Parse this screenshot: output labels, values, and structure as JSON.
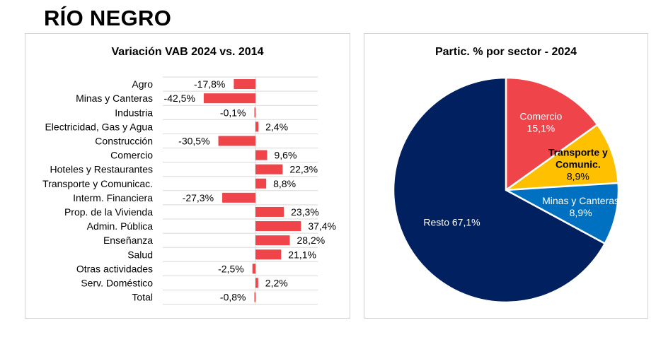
{
  "page": {
    "title": "RÍO NEGRO"
  },
  "chart_data": [
    {
      "type": "bar",
      "orientation": "horizontal",
      "title": "Variación VAB 2024 vs. 2014",
      "categories": [
        "Agro",
        "Minas y Canteras",
        "Industria",
        "Electricidad, Gas y Agua",
        "Construcción",
        "Comercio",
        "Hoteles y Restaurantes",
        "Transporte y Comunicac.",
        "Interm. Financiera",
        "Prop. de la Vivienda",
        "Admin. Pública",
        "Enseñanza",
        "Salud",
        "Otras actividades",
        "Serv. Doméstico",
        "Total"
      ],
      "values": [
        -17.8,
        -42.5,
        -0.1,
        2.4,
        -30.5,
        9.6,
        22.3,
        8.8,
        -27.3,
        23.3,
        37.4,
        28.2,
        21.1,
        -2.5,
        2.2,
        -0.8
      ],
      "data_labels": [
        "-17,8%",
        "-42,5%",
        "-0,1%",
        "2,4%",
        "-30,5%",
        "9,6%",
        "22,3%",
        "8,8%",
        "-27,3%",
        "23,3%",
        "37,4%",
        "28,2%",
        "21,1%",
        "-2,5%",
        "2,2%",
        "-0,8%"
      ],
      "bar_color": "#f0444b",
      "grid": true
    },
    {
      "type": "pie",
      "title": "Partic. % por sector - 2024",
      "slices": [
        {
          "name": "Comercio",
          "value": 15.1,
          "label_line1": "Comercio",
          "label_line2": "15,1%",
          "color": "#f0444b",
          "text_color": "#ffffff"
        },
        {
          "name": "Transporte y Comunic.",
          "value": 8.9,
          "label_line1": "Transporte y",
          "label_line2": "Comunic.",
          "label_line3": "8,9%",
          "color": "#ffc000",
          "text_color": "#000000"
        },
        {
          "name": "Minas y Canteras",
          "value": 8.9,
          "label_line1": "Minas y Canteras",
          "label_line2": "8,9%",
          "color": "#0070c0",
          "text_color": "#ffffff"
        },
        {
          "name": "Resto",
          "value": 67.1,
          "label_line1": "Resto 67,1%",
          "color": "#002060",
          "text_color": "#ffffff"
        }
      ]
    }
  ]
}
